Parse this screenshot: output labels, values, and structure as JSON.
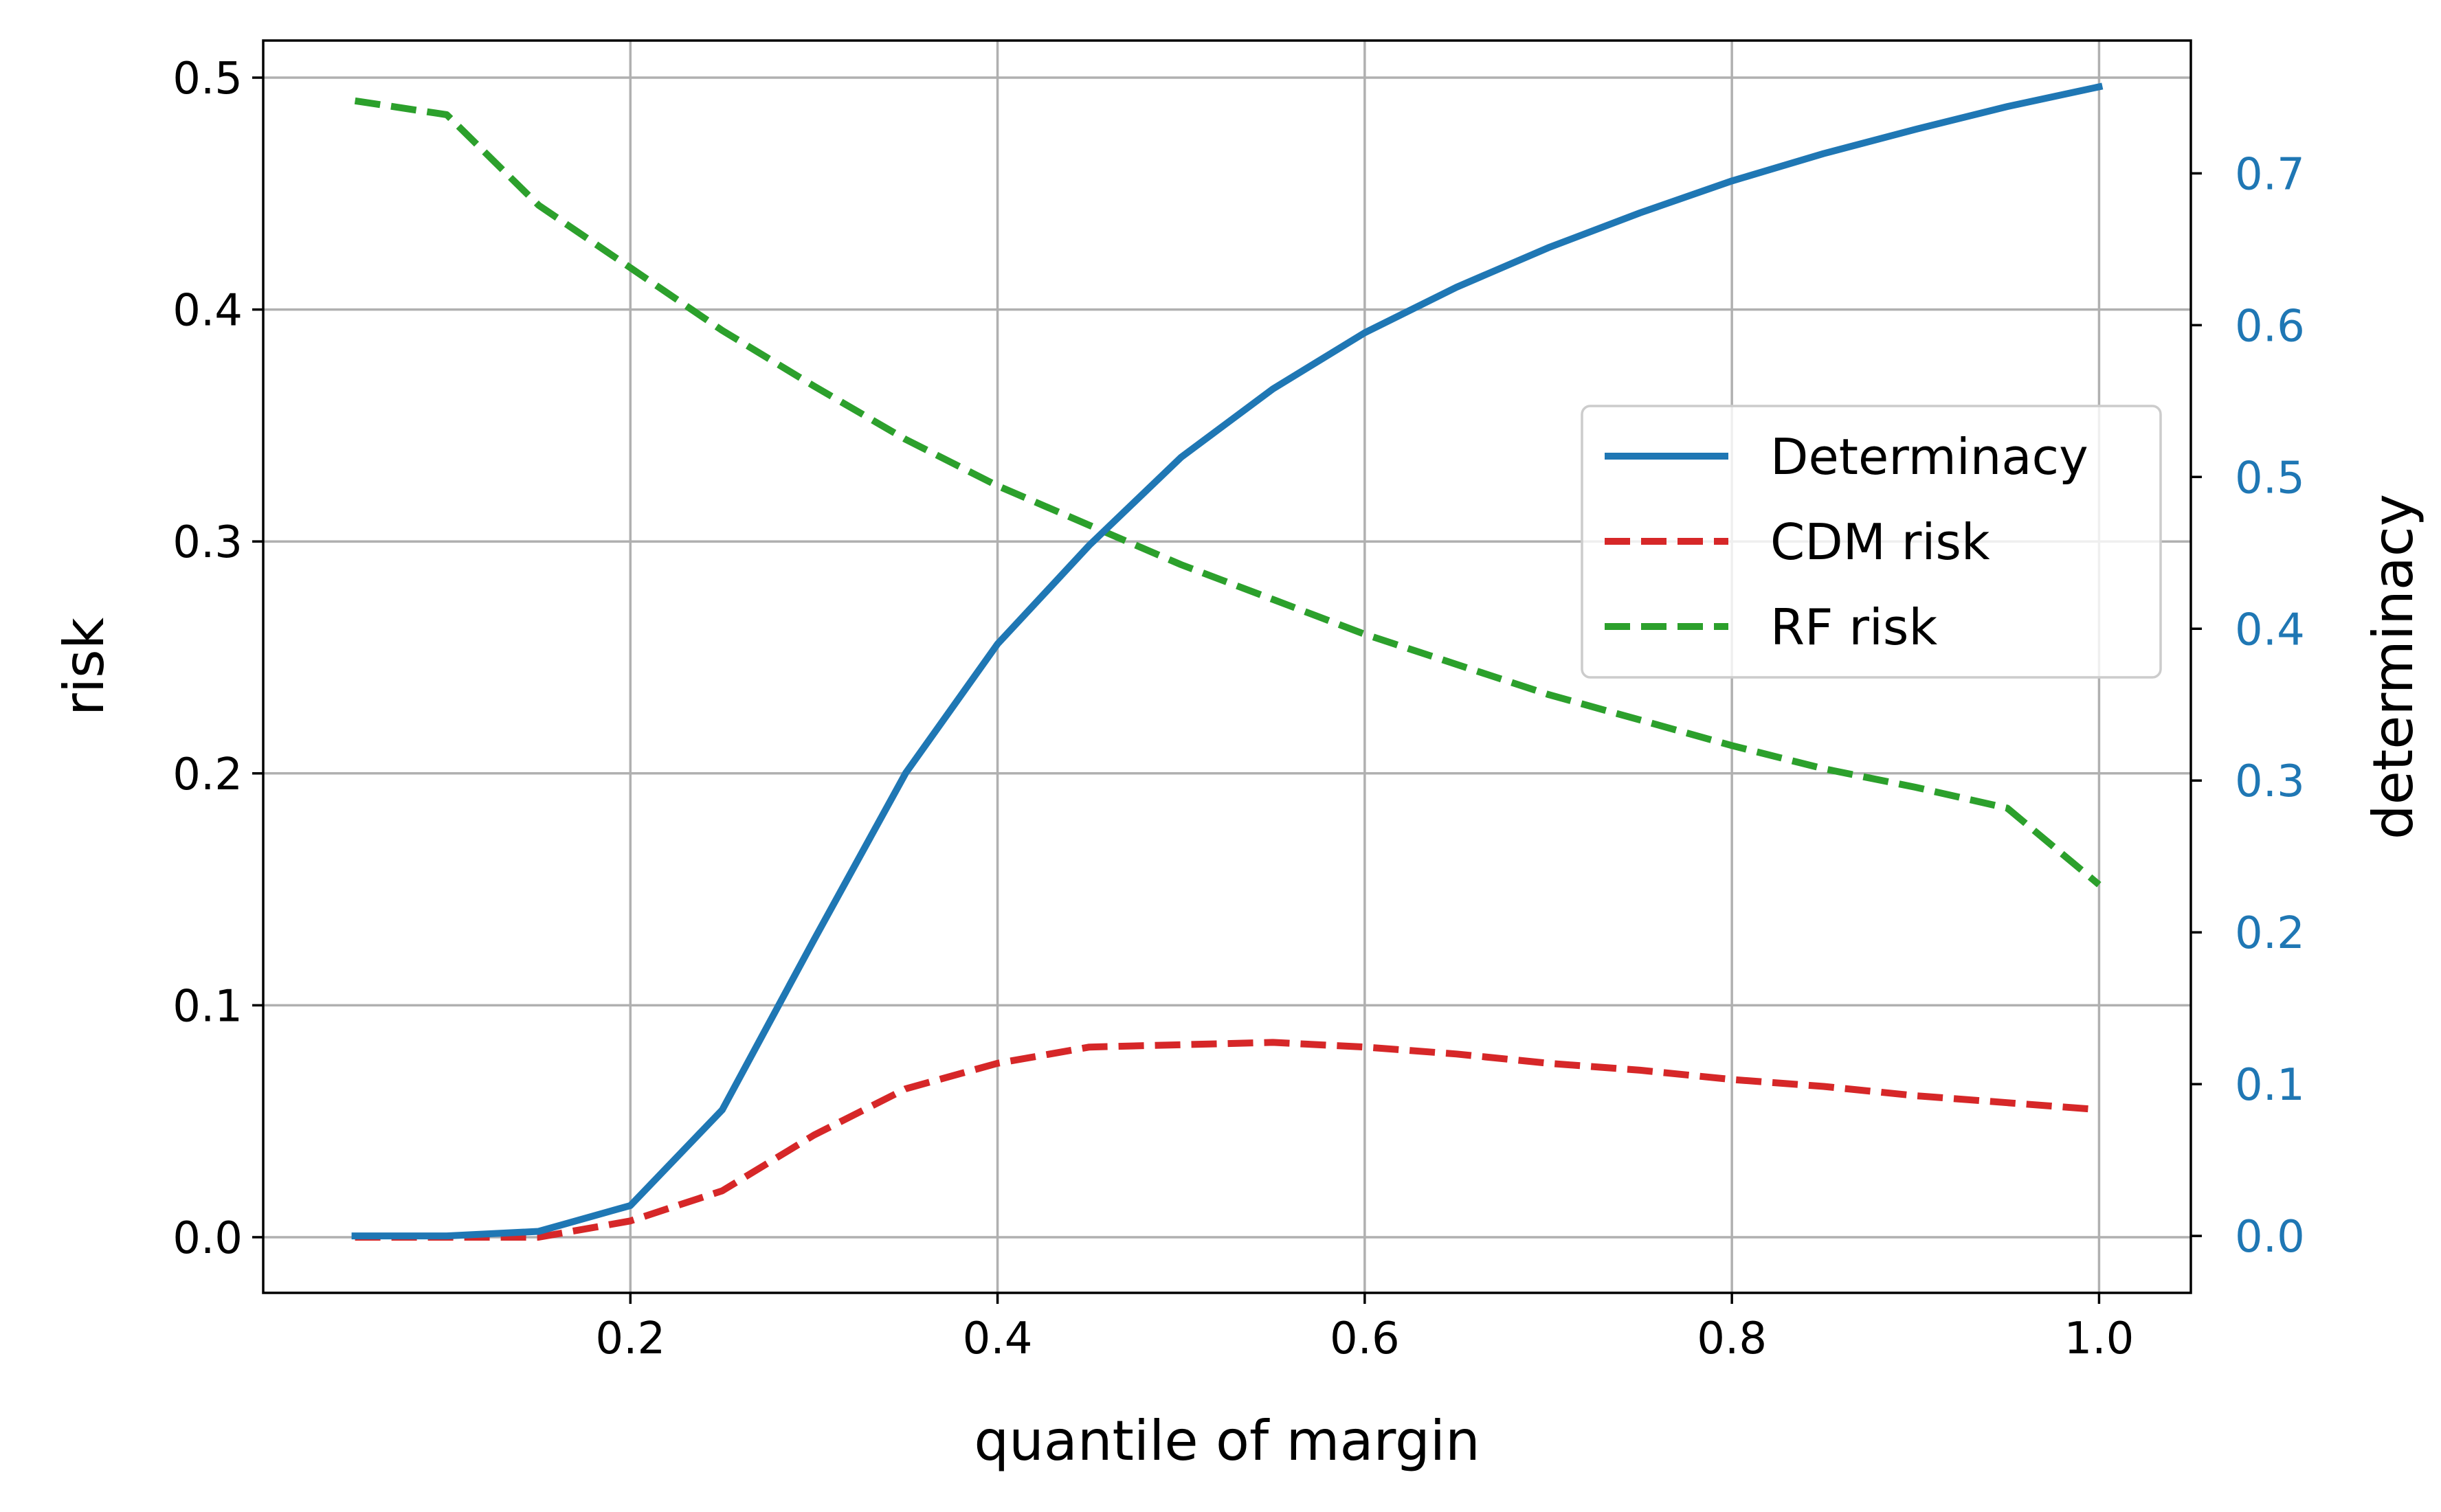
{
  "chart_data": {
    "type": "line",
    "xlabel": "quantile of margin",
    "ylabel": "risk",
    "y2label": "determinacy",
    "xlim": [
      0.0,
      1.05
    ],
    "ylim": [
      -0.024,
      0.516
    ],
    "y2lim": [
      -0.0375,
      0.7875
    ],
    "xticks": [
      "0.2",
      "0.4",
      "0.6",
      "0.8",
      "1.0"
    ],
    "yticks": [
      "0.0",
      "0.1",
      "0.2",
      "0.3",
      "0.4",
      "0.5"
    ],
    "y2ticks": [
      "0.0",
      "0.1",
      "0.2",
      "0.3",
      "0.4",
      "0.5",
      "0.6",
      "0.7"
    ],
    "grid": true,
    "legend_position": "center-right",
    "x": [
      0.05,
      0.1,
      0.15,
      0.2,
      0.25,
      0.3,
      0.35,
      0.4,
      0.45,
      0.5,
      0.55,
      0.6,
      0.65,
      0.7,
      0.75,
      0.8,
      0.85,
      0.9,
      0.95,
      1.0
    ],
    "series": [
      {
        "name": "Determinacy",
        "axis": "right",
        "style": "solid",
        "color": "#1f77b4",
        "values": [
          0.0,
          0.0,
          0.003,
          0.02,
          0.083,
          0.195,
          0.305,
          0.39,
          0.455,
          0.513,
          0.558,
          0.595,
          0.625,
          0.651,
          0.674,
          0.695,
          0.713,
          0.729,
          0.744,
          0.757
        ]
      },
      {
        "name": "CDM risk",
        "axis": "left",
        "style": "dashed",
        "color": "#d62728",
        "values": [
          0.0,
          0.0,
          0.0,
          0.007,
          0.02,
          0.044,
          0.064,
          0.075,
          0.082,
          0.083,
          0.084,
          0.082,
          0.079,
          0.075,
          0.072,
          0.068,
          0.065,
          0.061,
          0.058,
          0.055
        ]
      },
      {
        "name": "RF risk",
        "axis": "left",
        "style": "dashed",
        "color": "#2ca02c",
        "values": [
          0.49,
          0.484,
          0.445,
          0.418,
          0.391,
          0.367,
          0.344,
          0.324,
          0.307,
          0.29,
          0.275,
          0.26,
          0.247,
          0.234,
          0.223,
          0.212,
          0.202,
          0.194,
          0.185,
          0.152
        ]
      }
    ],
    "colors": {
      "right_axis": "#1f77b4",
      "grid": "#b0b0b0"
    }
  }
}
